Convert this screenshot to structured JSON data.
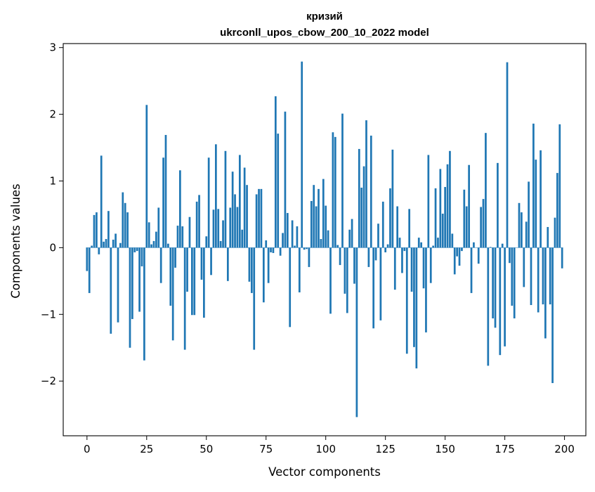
{
  "chart_data": {
    "type": "bar",
    "title": "кризий",
    "subtitle": "ukrconll_upos_cbow_200_10_2022 model",
    "xlabel": "Vector components",
    "ylabel": "Components values",
    "xlim": [
      -9.95,
      208.95
    ],
    "ylim": [
      -2.82,
      3.06
    ],
    "xticks": [
      0,
      25,
      50,
      75,
      100,
      125,
      150,
      175,
      200
    ],
    "yticks": [
      -2,
      -1,
      0,
      1,
      2,
      3
    ],
    "xtick_labels": [
      "0",
      "25",
      "50",
      "75",
      "100",
      "125",
      "150",
      "175",
      "200"
    ],
    "ytick_labels": [
      "−2",
      "−1",
      "0",
      "1",
      "2",
      "3"
    ],
    "bar_color": "#1f77b4",
    "grid": false,
    "x": [
      0,
      1,
      2,
      3,
      4,
      5,
      6,
      7,
      8,
      9,
      10,
      11,
      12,
      13,
      14,
      15,
      16,
      17,
      18,
      19,
      20,
      21,
      22,
      23,
      24,
      25,
      26,
      27,
      28,
      29,
      30,
      31,
      32,
      33,
      34,
      35,
      36,
      37,
      38,
      39,
      40,
      41,
      42,
      43,
      44,
      45,
      46,
      47,
      48,
      49,
      50,
      51,
      52,
      53,
      54,
      55,
      56,
      57,
      58,
      59,
      60,
      61,
      62,
      63,
      64,
      65,
      66,
      67,
      68,
      69,
      70,
      71,
      72,
      73,
      74,
      75,
      76,
      77,
      78,
      79,
      80,
      81,
      82,
      83,
      84,
      85,
      86,
      87,
      88,
      89,
      90,
      91,
      92,
      93,
      94,
      95,
      96,
      97,
      98,
      99,
      100,
      101,
      102,
      103,
      104,
      105,
      106,
      107,
      108,
      109,
      110,
      111,
      112,
      113,
      114,
      115,
      116,
      117,
      118,
      119,
      120,
      121,
      122,
      123,
      124,
      125,
      126,
      127,
      128,
      129,
      130,
      131,
      132,
      133,
      134,
      135,
      136,
      137,
      138,
      139,
      140,
      141,
      142,
      143,
      144,
      145,
      146,
      147,
      148,
      149,
      150,
      151,
      152,
      153,
      154,
      155,
      156,
      157,
      158,
      159,
      160,
      161,
      162,
      163,
      164,
      165,
      166,
      167,
      168,
      169,
      170,
      171,
      172,
      173,
      174,
      175,
      176,
      177,
      178,
      179,
      180,
      181,
      182,
      183,
      184,
      185,
      186,
      187,
      188,
      189,
      190,
      191,
      192,
      193,
      194,
      195,
      196,
      197,
      198,
      199
    ],
    "values": [
      -0.35,
      -0.68,
      0.03,
      0.49,
      0.53,
      -0.1,
      1.38,
      0.09,
      0.13,
      0.55,
      -1.29,
      0.12,
      0.21,
      -1.12,
      0.07,
      0.83,
      0.67,
      0.53,
      -1.5,
      -1.07,
      -0.07,
      -0.05,
      -0.96,
      -0.28,
      -1.69,
      2.14,
      0.38,
      0.05,
      0.1,
      0.24,
      0.6,
      -0.53,
      1.35,
      1.69,
      0.06,
      -0.87,
      -1.39,
      -0.3,
      0.33,
      1.16,
      0.32,
      -1.53,
      -0.66,
      0.46,
      -1.01,
      -1.01,
      0.69,
      0.79,
      -0.48,
      -1.05,
      0.17,
      1.35,
      -0.41,
      0.57,
      1.55,
      0.58,
      0.1,
      0.41,
      1.45,
      -0.5,
      0.6,
      1.14,
      0.8,
      0.61,
      1.39,
      0.27,
      1.2,
      0.94,
      -0.51,
      -0.68,
      -1.53,
      0.8,
      0.88,
      0.88,
      -0.82,
      0.11,
      -0.53,
      -0.07,
      -0.08,
      2.27,
      1.71,
      -0.12,
      0.22,
      2.04,
      0.52,
      -1.19,
      0.41,
      0.03,
      0.32,
      -0.67,
      2.79,
      -0.03,
      -0.02,
      -0.29,
      0.7,
      0.94,
      0.62,
      0.88,
      0.13,
      1.03,
      0.63,
      0.26,
      -0.99,
      1.73,
      1.66,
      0.04,
      -0.26,
      2.01,
      -0.69,
      -0.98,
      0.27,
      0.43,
      -0.54,
      -2.54,
      1.48,
      0.9,
      1.22,
      1.91,
      -0.29,
      1.68,
      -1.21,
      -0.19,
      0.36,
      -1.09,
      0.69,
      -0.07,
      0.05,
      0.89,
      1.47,
      -0.63,
      0.62,
      0.15,
      -0.38,
      -0.05,
      -1.59,
      0.58,
      -0.66,
      -1.49,
      -1.81,
      0.15,
      0.08,
      -0.61,
      -1.27,
      1.39,
      -0.53,
      0.03,
      0.89,
      0.15,
      1.18,
      0.51,
      0.91,
      1.25,
      1.45,
      0.21,
      -0.4,
      -0.13,
      -0.27,
      -0.05,
      0.87,
      0.62,
      1.24,
      -0.68,
      0.08,
      0.0,
      -0.24,
      0.61,
      0.73,
      1.72,
      -1.77,
      0.01,
      -1.06,
      -1.2,
      1.27,
      -1.61,
      0.06,
      -1.48,
      2.78,
      -0.23,
      -0.87,
      -1.06,
      0.0,
      0.67,
      0.53,
      -0.59,
      0.39,
      0.99,
      -0.86,
      1.86,
      1.32,
      -0.97,
      1.46,
      -0.85,
      -1.36,
      0.31,
      -0.85,
      -2.03,
      0.45,
      1.12,
      1.85,
      -0.31
    ]
  }
}
